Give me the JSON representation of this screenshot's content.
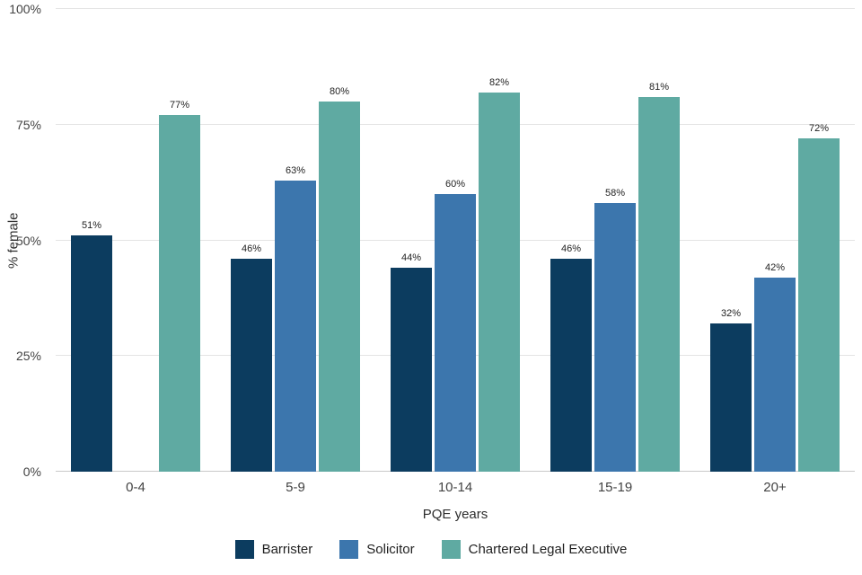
{
  "chart_data": {
    "type": "bar",
    "title": "",
    "categories": [
      "0-4",
      "5-9",
      "10-14",
      "15-19",
      "20+"
    ],
    "series": [
      {
        "name": "Barrister",
        "color": "#0c3c5f",
        "values": [
          51,
          46,
          44,
          46,
          32
        ]
      },
      {
        "name": "Solicitor",
        "color": "#3c76ad",
        "values": [
          null,
          63,
          60,
          58,
          42
        ]
      },
      {
        "name": "Chartered Legal Executive",
        "color": "#5faaa2",
        "values": [
          77,
          80,
          82,
          81,
          72
        ]
      }
    ],
    "xlabel": "PQE years",
    "ylabel": "% female",
    "ylim": [
      0,
      100
    ],
    "yticks": [
      0,
      25,
      50,
      75,
      100
    ],
    "ytick_labels": [
      "0%",
      "25%",
      "50%",
      "75%",
      "100%"
    ],
    "grid": true,
    "legend_position": "bottom",
    "value_label_format": "{v}%"
  }
}
